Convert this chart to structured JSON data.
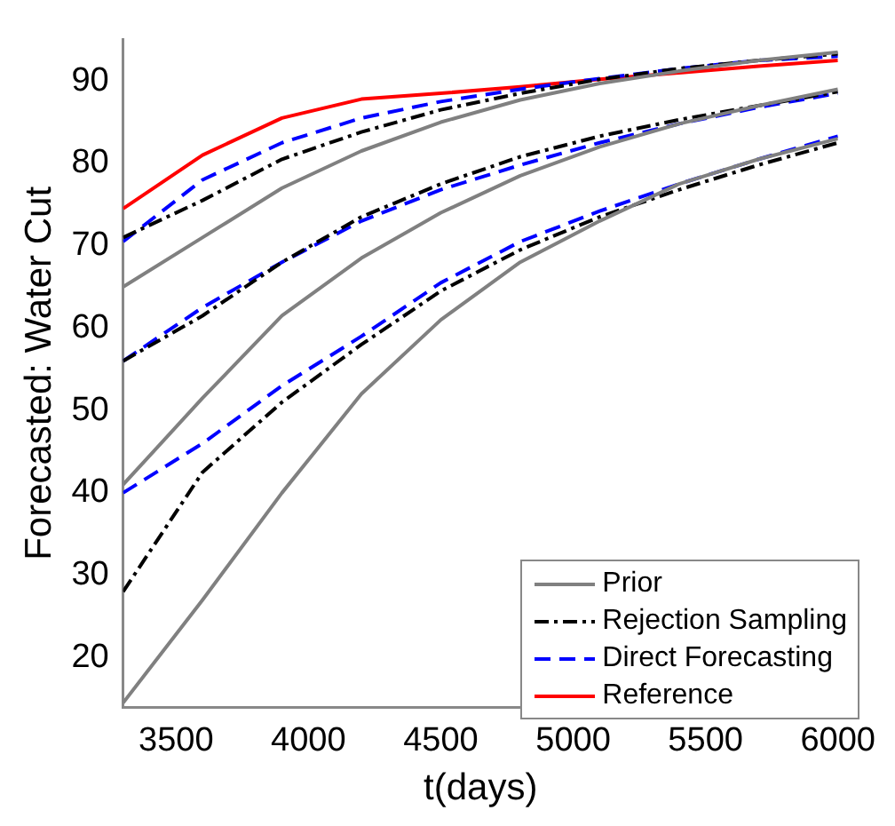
{
  "chart_data": {
    "type": "line",
    "xlabel": "t(days)",
    "ylabel": "Forecasted: Water Cut",
    "x": [
      3300,
      3600,
      3900,
      4200,
      4500,
      4800,
      5100,
      5400,
      5700,
      6000
    ],
    "xlim": [
      3300,
      6000
    ],
    "xticks": [
      3500,
      4000,
      4500,
      5000,
      5500,
      6000
    ],
    "ylim": [
      14,
      95
    ],
    "yticks": [
      20,
      30,
      40,
      50,
      60,
      70,
      80,
      90
    ],
    "grid": false,
    "legend": "bottom right",
    "marker": "none",
    "series": [
      {
        "name": "Prior",
        "color": "#808080",
        "line_style": "solid",
        "values": [
          65,
          71,
          77,
          81.5,
          85,
          87.7,
          89.7,
          91.2,
          92.5,
          93.5
        ]
      },
      {
        "color": "#808080",
        "line_style": "solid",
        "values": [
          41,
          51.5,
          61.5,
          68.5,
          74,
          78.5,
          82,
          84.8,
          87,
          89
        ]
      },
      {
        "color": "#808080",
        "line_style": "solid",
        "values": [
          14.5,
          27,
          40,
          52,
          61,
          68,
          73,
          77.5,
          80.5,
          83
        ]
      },
      {
        "name": "Rejection Sampling",
        "color": "#000000",
        "line_style": "dashdot",
        "values": [
          71,
          75.5,
          80.5,
          83.8,
          86.5,
          88.5,
          90.2,
          91.5,
          92.5,
          93.3
        ]
      },
      {
        "color": "#000000",
        "line_style": "dashdot",
        "values": [
          56,
          61.5,
          68,
          73.5,
          77.5,
          80.8,
          83.3,
          85.3,
          87,
          88.7
        ]
      },
      {
        "color": "#000000",
        "line_style": "dashdot",
        "values": [
          28,
          42.5,
          51,
          58,
          64.5,
          69.5,
          73.5,
          76.8,
          79.8,
          82.5
        ]
      },
      {
        "name": "Direct Forecasting",
        "color": "#0000ff",
        "line_style": "dashed",
        "values": [
          70.5,
          78,
          82.5,
          85.5,
          87.5,
          89,
          90.3,
          91.5,
          92.5,
          93
        ]
      },
      {
        "color": "#0000ff",
        "line_style": "dashed",
        "values": [
          56,
          62.5,
          68,
          73,
          76.8,
          79.8,
          82.5,
          84.8,
          86.8,
          88.5
        ]
      },
      {
        "color": "#0000ff",
        "line_style": "dashed",
        "values": [
          40,
          46,
          53,
          59,
          65.5,
          70.5,
          74.2,
          77.5,
          80.5,
          83.3
        ]
      },
      {
        "name": "Reference",
        "color": "#ff0000",
        "line_style": "solid",
        "values": [
          74.5,
          81,
          85.5,
          87.8,
          88.5,
          89.3,
          90.2,
          91,
          91.8,
          92.5
        ]
      }
    ]
  }
}
